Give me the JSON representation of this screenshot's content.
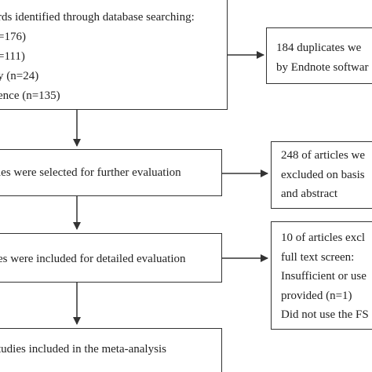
{
  "boxes": {
    "identified": {
      "lines": [
        "rds identified through database searching:",
        "=176)",
        "=111)",
        "y (n=24)",
        "ence (n=135)"
      ]
    },
    "duplicates": {
      "lines": [
        "184 duplicates we",
        "by Endnote softwar"
      ]
    },
    "selected": {
      "lines": [
        "les were selected for further evaluation"
      ]
    },
    "excluded_abstract": {
      "lines": [
        "248 of articles we",
        "excluded on basis",
        "and abstract"
      ]
    },
    "detailed": {
      "lines": [
        "es were included for detailed evaluation"
      ]
    },
    "excluded_fulltext": {
      "lines": [
        "10 of articles excl",
        "full text screen:",
        "Insufficient or use",
        "provided (n=1)",
        "Did not use the FS"
      ]
    },
    "meta": {
      "lines": [
        "tudies included in the meta-analysis"
      ]
    }
  }
}
